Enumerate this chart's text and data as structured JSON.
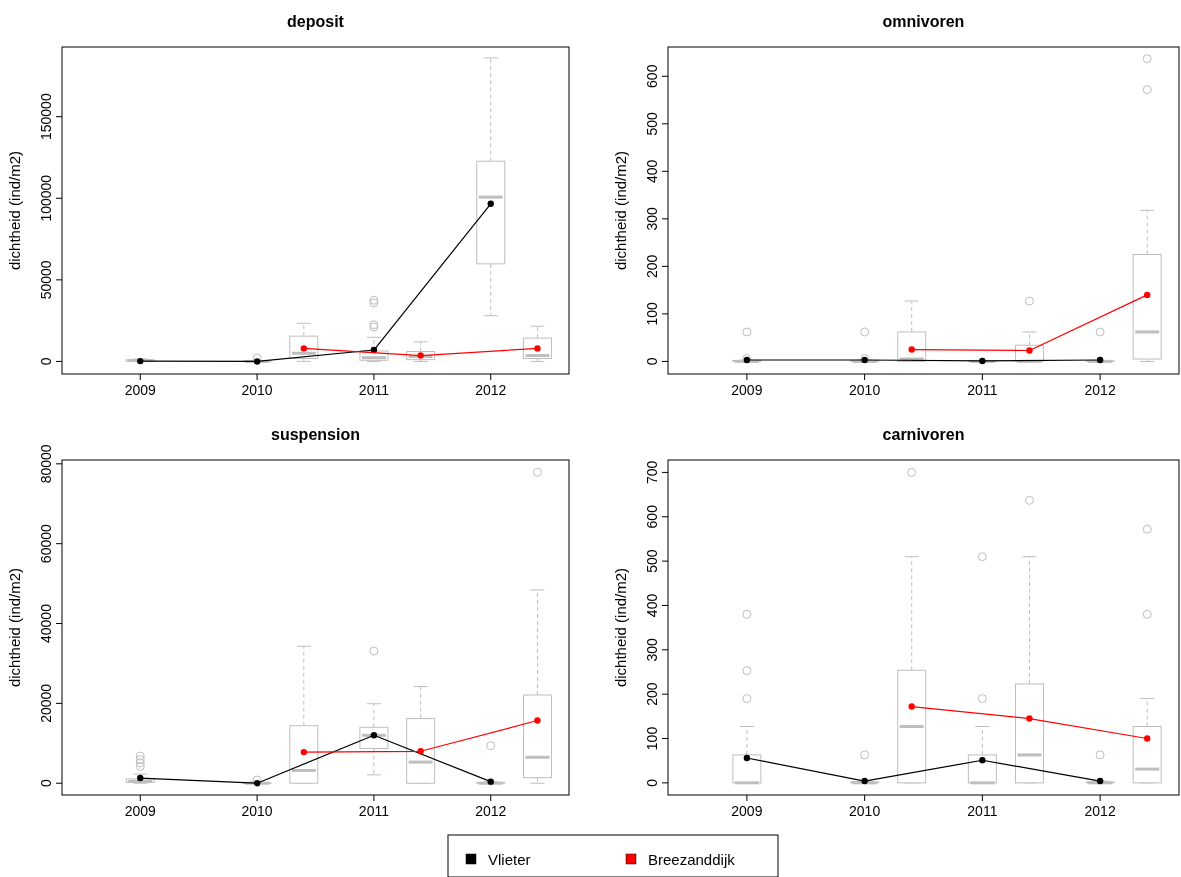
{
  "chart_data": [
    {
      "type": "box",
      "title": "deposit",
      "ylabel": "dichtheid (ind/m2)",
      "xlim": [
        2008.33,
        2012.67
      ],
      "xticks": [
        2009,
        2010,
        2011,
        2012
      ],
      "ylim": [
        -7700,
        192700
      ],
      "yticks": [
        0,
        50000,
        100000,
        150000
      ],
      "marker": "circle",
      "series": [
        {
          "color": "#bebebe",
          "x": [
            2009,
            2010,
            2010.4,
            2011,
            2011.4,
            2012,
            2012.4
          ],
          "boxes": [
            {
              "low": 0,
              "q1": 0,
              "median": 500,
              "q3": 1000,
              "high": 1500
            },
            {
              "low": 0,
              "q1": 0,
              "median": 0,
              "q3": 300,
              "high": 500,
              "outliers": [
                2000
              ]
            },
            {
              "low": 0,
              "q1": 1800,
              "median": 5000,
              "q3": 15500,
              "high": 23400
            },
            {
              "low": 0,
              "q1": 700,
              "median": 2300,
              "q3": 6400,
              "high": 14800,
              "outliers": [
                21100,
                22500,
                35900,
                37500
              ]
            },
            {
              "low": 0,
              "q1": 1100,
              "median": 3000,
              "q3": 6100,
              "high": 12000
            },
            {
              "low": 28000,
              "q1": 59800,
              "median": 100700,
              "q3": 122700,
              "high": 186000
            },
            {
              "low": 0,
              "q1": 1800,
              "median": 3600,
              "q3": 14300,
              "high": 21600
            }
          ]
        },
        {
          "type": "line",
          "color": "#000000",
          "x": [
            2009,
            2010,
            2011,
            2012
          ],
          "values": [
            200,
            0,
            7000,
            96600
          ]
        },
        {
          "type": "line",
          "color": "#ff0000",
          "x": [
            2010.4,
            2011.4,
            2012.4
          ],
          "values": [
            8000,
            3600,
            8000
          ]
        }
      ]
    },
    {
      "type": "box",
      "title": "omnivoren",
      "ylabel": "dichtheid (ind/m2)",
      "xlim": [
        2008.33,
        2012.67
      ],
      "xticks": [
        2009,
        2010,
        2011,
        2012
      ],
      "ylim": [
        -26.5,
        661.6
      ],
      "yticks": [
        0,
        100,
        200,
        300,
        400,
        500,
        600
      ],
      "marker": "circle",
      "series": [
        {
          "color": "#bebebe",
          "x": [
            2009,
            2010,
            2010.4,
            2011,
            2011.4,
            2012,
            2012.4
          ],
          "boxes": [
            {
              "low": 0,
              "q1": 0,
              "median": 0,
              "q3": 2,
              "high": 3,
              "outliers": [
                6,
                62
              ]
            },
            {
              "low": 0,
              "q1": 0,
              "median": 0,
              "q3": 2,
              "high": 3,
              "outliers": [
                6,
                62
              ]
            },
            {
              "low": 0,
              "q1": 0,
              "median": 5,
              "q3": 62,
              "high": 127
            },
            {
              "low": 0,
              "q1": 0,
              "median": 0,
              "q3": 1,
              "high": 2
            },
            {
              "low": 0,
              "q1": 0,
              "median": 0,
              "q3": 34,
              "high": 62,
              "outliers": [
                127
              ]
            },
            {
              "low": 0,
              "q1": 0,
              "median": 0,
              "q3": 1,
              "high": 2,
              "outliers": [
                62
              ]
            },
            {
              "low": 0,
              "q1": 5,
              "median": 62,
              "q3": 225,
              "high": 318,
              "outliers": [
                572,
                637
              ]
            }
          ]
        },
        {
          "type": "line",
          "color": "#000000",
          "x": [
            2009,
            2010,
            2011,
            2012
          ],
          "values": [
            3,
            3,
            1,
            3
          ]
        },
        {
          "type": "line",
          "color": "#ff0000",
          "x": [
            2010.4,
            2011.4,
            2012.4
          ],
          "values": [
            25,
            23,
            140
          ]
        }
      ]
    },
    {
      "type": "box",
      "title": "suspension",
      "ylabel": "dichtheid (ind/m2)",
      "xlim": [
        2008.33,
        2012.67
      ],
      "xticks": [
        2009,
        2010,
        2011,
        2012
      ],
      "ylim": [
        -2950,
        80960
      ],
      "yticks": [
        0,
        20000,
        40000,
        60000,
        80000
      ],
      "marker": "circle",
      "series": [
        {
          "color": "#bebebe",
          "x": [
            2009,
            2010,
            2010.4,
            2011,
            2011.4,
            2012,
            2012.4
          ],
          "boxes": [
            {
              "low": 0,
              "q1": 200,
              "median": 500,
              "q3": 1100,
              "high": 2300,
              "outliers": [
                4200,
                5100,
                5900,
                6800
              ]
            },
            {
              "low": 0,
              "q1": 0,
              "median": 0,
              "q3": 100,
              "high": 300,
              "outliers": [
                800
              ]
            },
            {
              "low": 0,
              "q1": 0,
              "median": 3200,
              "q3": 14400,
              "high": 34300
            },
            {
              "low": 2100,
              "q1": 8700,
              "median": 12000,
              "q3": 14000,
              "high": 19900,
              "outliers": [
                33100
              ]
            },
            {
              "low": 0,
              "q1": 0,
              "median": 5300,
              "q3": 16200,
              "high": 24200
            },
            {
              "low": 0,
              "q1": 0,
              "median": 0,
              "q3": 200,
              "high": 400,
              "outliers": [
                9400
              ]
            },
            {
              "low": 0,
              "q1": 1400,
              "median": 6500,
              "q3": 22100,
              "high": 48400,
              "outliers": [
                77900
              ]
            }
          ]
        },
        {
          "type": "line",
          "color": "#000000",
          "x": [
            2009,
            2010,
            2011,
            2012
          ],
          "values": [
            1300,
            0,
            12000,
            400
          ]
        },
        {
          "type": "line",
          "color": "#ff0000",
          "x": [
            2010.4,
            2011.4,
            2012.4
          ],
          "values": [
            7800,
            8000,
            15700
          ]
        }
      ]
    },
    {
      "type": "box",
      "title": "carnivoren",
      "ylabel": "dichtheid (ind/m2)",
      "xlim": [
        2008.33,
        2012.67
      ],
      "xticks": [
        2009,
        2010,
        2011,
        2012
      ],
      "ylim": [
        -27.4,
        728
      ],
      "yticks": [
        0,
        100,
        200,
        300,
        400,
        500,
        600,
        700
      ],
      "marker": "circle",
      "legend": "bottom",
      "series": [
        {
          "color": "#bebebe",
          "x": [
            2009,
            2010,
            2010.4,
            2011,
            2011.4,
            2012,
            2012.4
          ],
          "boxes": [
            {
              "low": 0,
              "q1": 0,
              "median": 0,
              "q3": 63,
              "high": 127,
              "outliers": [
                190,
                253,
                380
              ]
            },
            {
              "low": 0,
              "q1": 0,
              "median": 0,
              "q3": 2,
              "high": 4,
              "outliers": [
                63
              ]
            },
            {
              "low": 0,
              "q1": 0,
              "median": 127,
              "q3": 254,
              "high": 510,
              "outliers": [
                700
              ]
            },
            {
              "low": 0,
              "q1": 0,
              "median": 0,
              "q3": 63,
              "high": 127,
              "outliers": [
                190,
                510
              ]
            },
            {
              "low": 0,
              "q1": 0,
              "median": 63,
              "q3": 223,
              "high": 510,
              "outliers": [
                637
              ]
            },
            {
              "low": 0,
              "q1": 0,
              "median": 0,
              "q3": 2,
              "high": 4,
              "outliers": [
                63
              ]
            },
            {
              "low": 0,
              "q1": 0,
              "median": 31,
              "q3": 127,
              "high": 190,
              "outliers": [
                380,
                572
              ]
            }
          ]
        },
        {
          "type": "line",
          "name": "Vlieter",
          "color": "#000000",
          "x": [
            2009,
            2010,
            2011,
            2012
          ],
          "values": [
            56,
            4,
            51,
            4
          ]
        },
        {
          "type": "line",
          "name": "Breezanddijk",
          "color": "#ff0000",
          "x": [
            2010.4,
            2011.4,
            2012.4
          ],
          "values": [
            172,
            145,
            100
          ]
        }
      ]
    }
  ]
}
